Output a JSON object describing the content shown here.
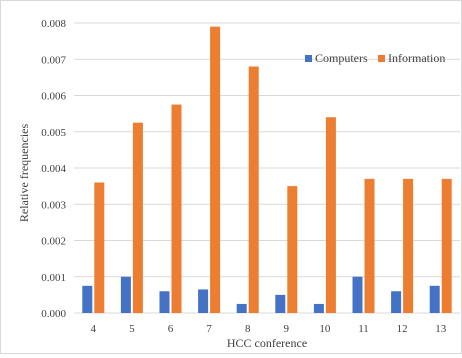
{
  "chart_data": {
    "type": "bar",
    "title": "",
    "xlabel": "HCC conference",
    "ylabel": "Relative frequencies",
    "categories": [
      "4",
      "5",
      "6",
      "7",
      "8",
      "9",
      "10",
      "11",
      "12",
      "13"
    ],
    "series": [
      {
        "name": "Computers",
        "color": "#4472c4",
        "values": [
          0.00075,
          0.001,
          0.0006,
          0.00065,
          0.00025,
          0.0005,
          0.00025,
          0.001,
          0.0006,
          0.00075
        ]
      },
      {
        "name": "Information",
        "color": "#ed7d31",
        "values": [
          0.0036,
          0.00525,
          0.00575,
          0.0079,
          0.0068,
          0.0035,
          0.0054,
          0.0037,
          0.0037,
          0.0037
        ]
      }
    ],
    "ylim": [
      0,
      0.008
    ],
    "yticks": [
      "0.000",
      "0.001",
      "0.002",
      "0.003",
      "0.004",
      "0.005",
      "0.006",
      "0.007",
      "0.008"
    ],
    "ytick_values": [
      0,
      0.001,
      0.002,
      0.003,
      0.004,
      0.005,
      0.006,
      0.007,
      0.008
    ],
    "grid": true,
    "gridline_color": "#d9d9d9",
    "legend_position": "top-right"
  }
}
